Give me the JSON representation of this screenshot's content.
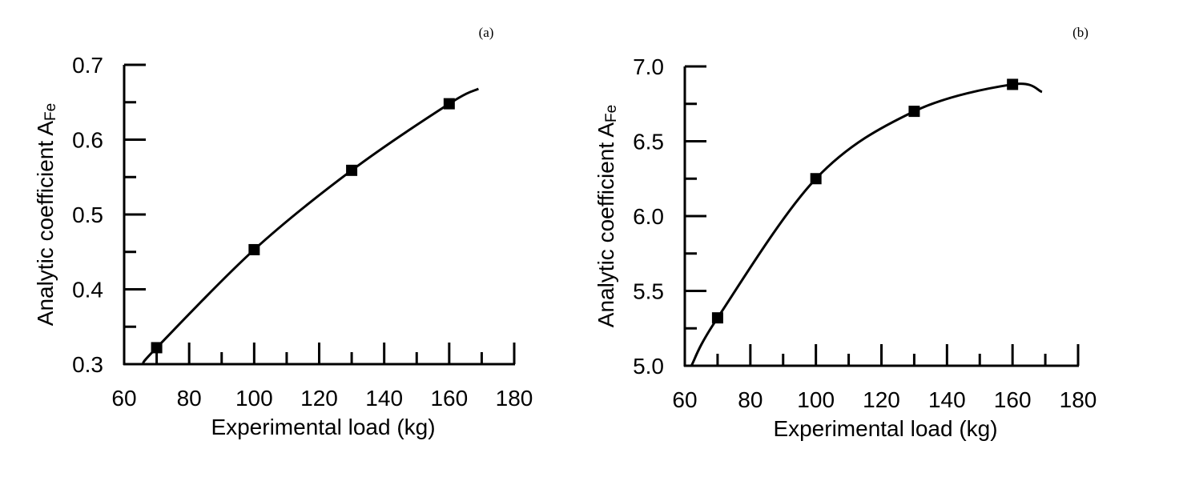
{
  "chart_data": [
    {
      "type": "line",
      "panel_label": "(a)",
      "xlabel": "Experimental load (kg)",
      "ylabel": "Analytic coefficient A",
      "ylabel_subscript": "Fe",
      "xlim": [
        60,
        180
      ],
      "ylim": [
        0.3,
        0.7
      ],
      "xticks": [
        "60",
        "80",
        "100",
        "120",
        "140",
        "160",
        "180"
      ],
      "yticks": [
        "0.3",
        "0.4",
        "0.5",
        "0.6",
        "0.7"
      ],
      "grid": false,
      "marker": "square",
      "points": {
        "x": [
          70,
          100,
          130,
          160
        ],
        "y": [
          0.322,
          0.453,
          0.559,
          0.648
        ]
      },
      "fit_curve": {
        "x": [
          65.7,
          70,
          100,
          130,
          160,
          169
        ],
        "y": [
          0.3,
          0.322,
          0.453,
          0.559,
          0.648,
          0.668
        ]
      }
    },
    {
      "type": "line",
      "panel_label": "(b)",
      "xlabel": "Experimental load (kg)",
      "ylabel": "Analytic coefficient A",
      "ylabel_subscript": "Fe",
      "xlim": [
        60,
        180
      ],
      "ylim": [
        5.0,
        7.0
      ],
      "xticks": [
        "60",
        "80",
        "100",
        "120",
        "140",
        "160",
        "180"
      ],
      "yticks": [
        "5.0",
        "5.5",
        "6.0",
        "6.5",
        "7.0"
      ],
      "grid": false,
      "marker": "square",
      "points": {
        "x": [
          70,
          100,
          130,
          160
        ],
        "y": [
          5.32,
          6.25,
          6.7,
          6.88
        ]
      },
      "fit_curve": {
        "x": [
          62,
          70,
          100,
          130,
          160,
          169
        ],
        "y": [
          5.0,
          5.32,
          6.25,
          6.7,
          6.88,
          6.83
        ]
      }
    }
  ]
}
